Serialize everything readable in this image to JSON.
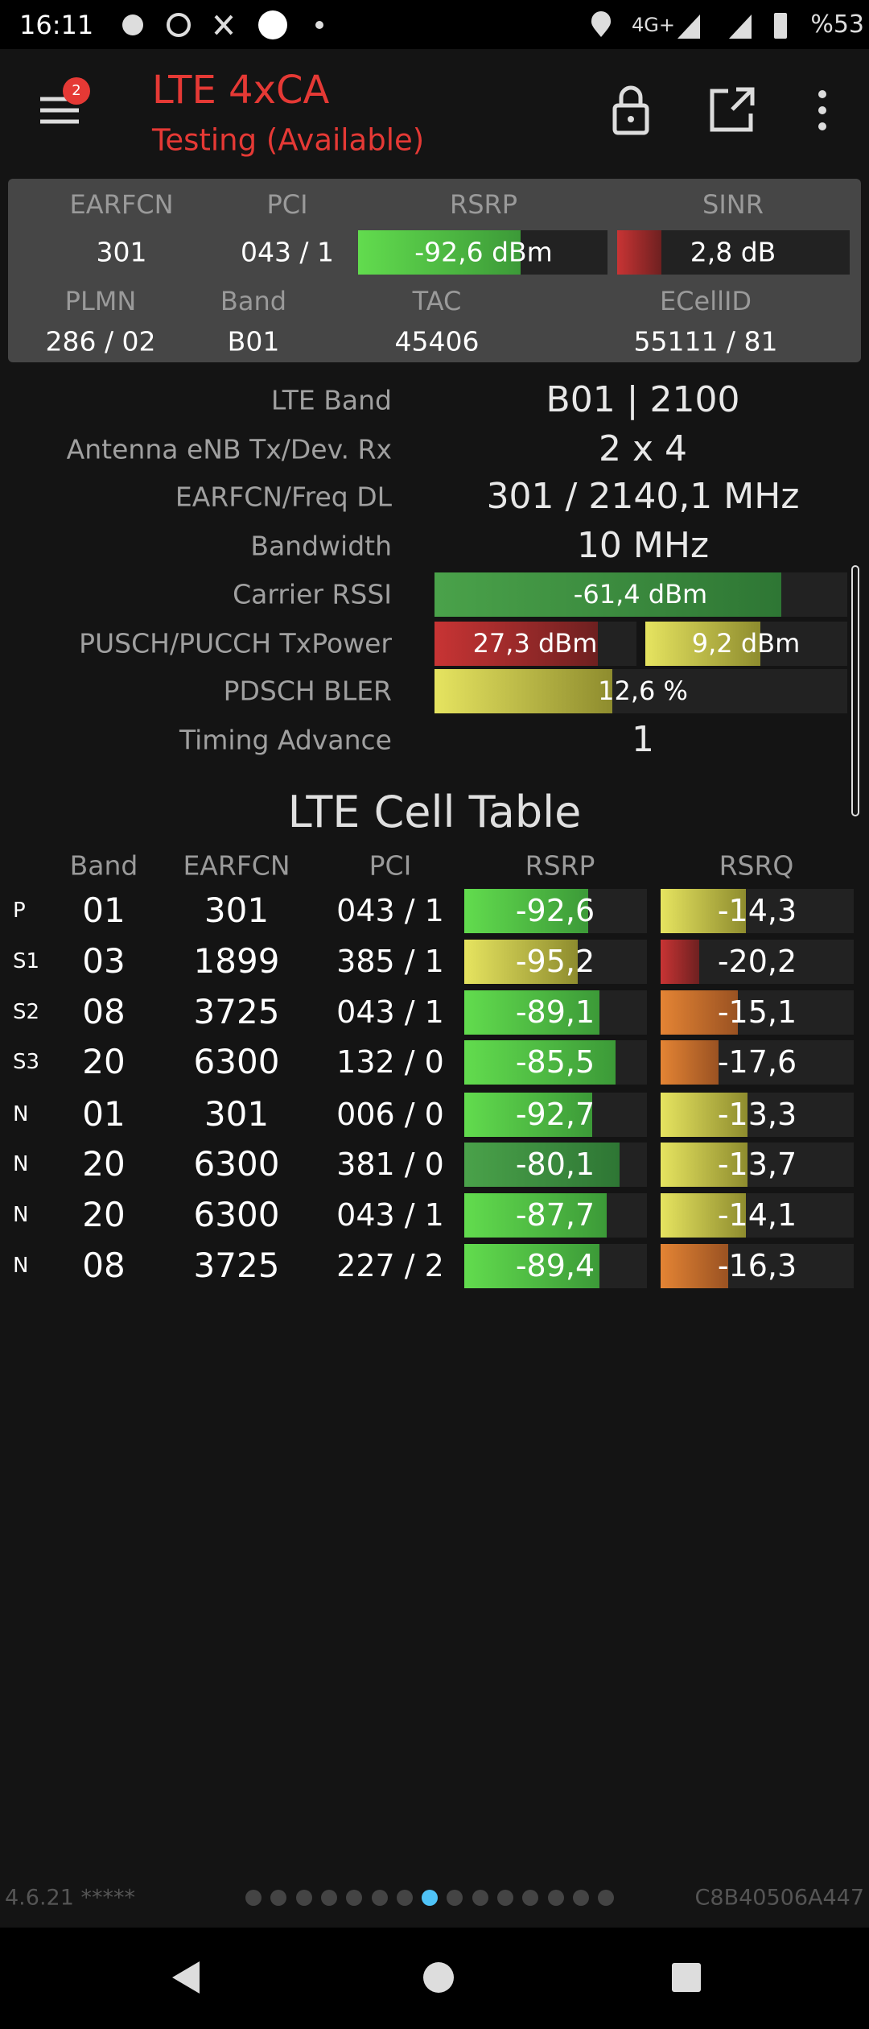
{
  "status_bar": {
    "time": "16:11",
    "network": "4G+",
    "battery": "%53"
  },
  "header": {
    "badge": "2",
    "title": "LTE 4xCA",
    "subtitle": "Testing (Available)"
  },
  "summary": {
    "row1_labels": [
      "EARFCN",
      "PCI",
      "RSRP",
      "SINR"
    ],
    "row1_values": [
      "301",
      "043 / 1",
      "-92,6 dBm",
      "2,8 dB"
    ],
    "row2_labels": [
      "PLMN",
      "Band",
      "TAC",
      "ECellID"
    ],
    "row2_values": [
      "286 / 02",
      "B01",
      "45406",
      "55111 / 81"
    ]
  },
  "details": [
    {
      "label": "LTE Band",
      "values": [
        "B01 | 2100"
      ]
    },
    {
      "label": "Antenna eNB Tx/Dev. Rx",
      "values": [
        "2 x 4"
      ]
    },
    {
      "label": "EARFCN/Freq DL",
      "values": [
        "301 / 2140,1 MHz"
      ]
    },
    {
      "label": "Bandwidth",
      "values": [
        "10 MHz"
      ]
    },
    {
      "label": "Carrier RSSI",
      "values": [
        "-61,4 dBm"
      ]
    },
    {
      "label": "PUSCH/PUCCH TxPower",
      "values": [
        "27,3 dBm",
        "9,2 dBm"
      ]
    },
    {
      "label": "PDSCH BLER",
      "values": [
        "12,6 %"
      ]
    },
    {
      "label": "Timing Advance",
      "values": [
        "1"
      ]
    }
  ],
  "cell_table": {
    "title": "LTE Cell Table",
    "columns": [
      "Band",
      "EARFCN",
      "PCI",
      "RSRP",
      "RSRQ"
    ],
    "rows": [
      [
        "P",
        "01",
        "301",
        "043 / 1",
        "-92,6",
        "-14,3"
      ],
      [
        "S1",
        "03",
        "1899",
        "385 / 1",
        "-95,2",
        "-20,2"
      ],
      [
        "S2",
        "08",
        "3725",
        "043 / 1",
        "-89,1",
        "-15,1"
      ],
      [
        "S3",
        "20",
        "6300",
        "132 / 0",
        "-85,5",
        "-17,6"
      ],
      [
        "N",
        "01",
        "301",
        "006 / 0",
        "-92,7",
        "-13,3"
      ],
      [
        "N",
        "20",
        "6300",
        "381 / 0",
        "-80,1",
        "-13,7"
      ],
      [
        "N",
        "20",
        "6300",
        "043 / 1",
        "-87,7",
        "-14,1"
      ],
      [
        "N",
        "08",
        "3725",
        "227 / 2",
        "-89,4",
        "-16,3"
      ]
    ]
  },
  "footer": {
    "version": "4.6.21 *****",
    "device_id": "C8B40506A447"
  }
}
